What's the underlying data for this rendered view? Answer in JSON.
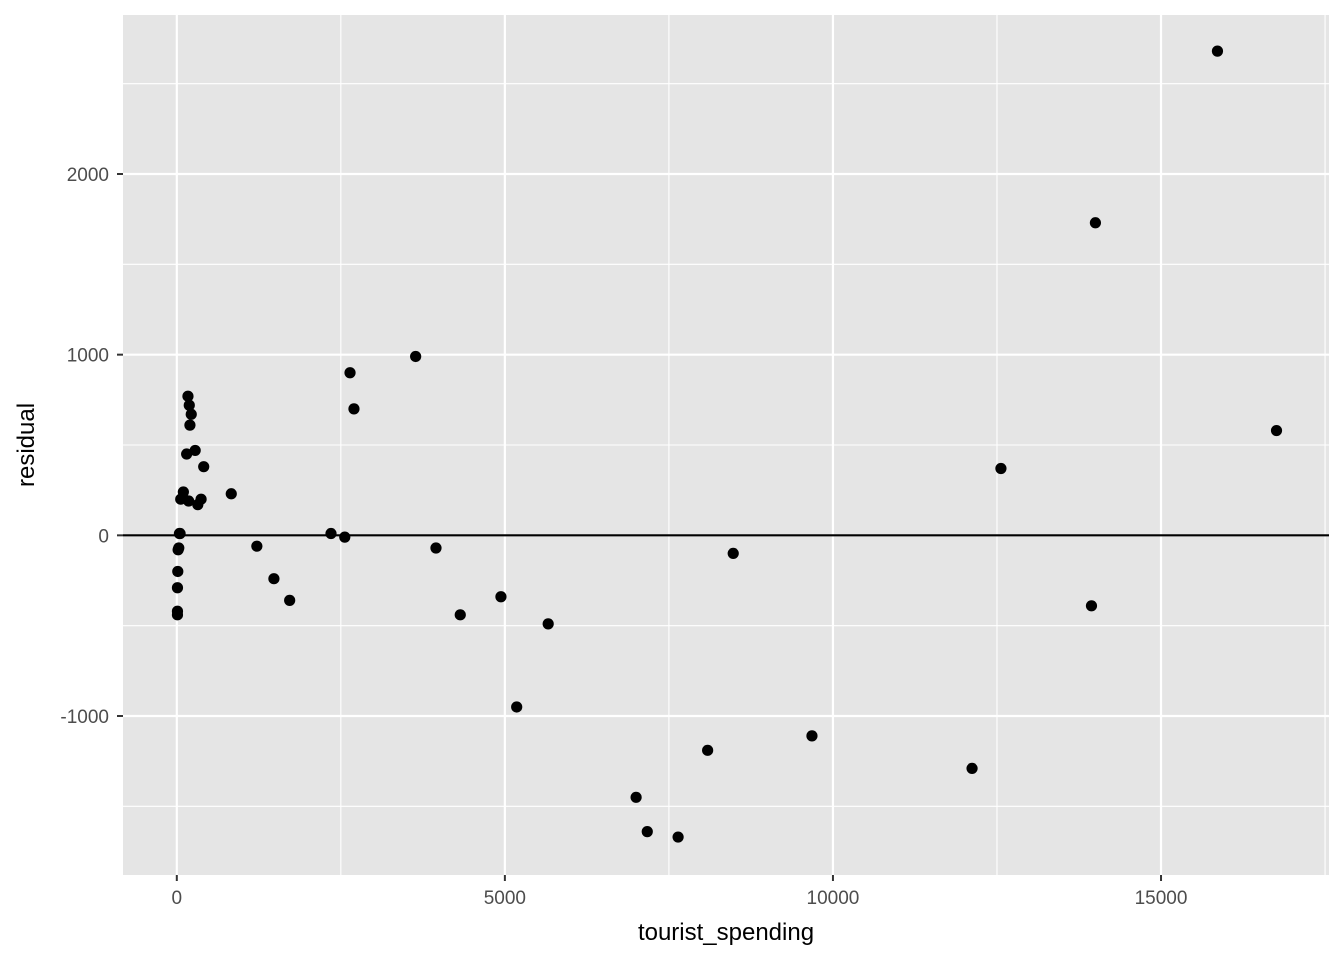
{
  "chart_data": {
    "type": "scatter",
    "title": "",
    "xlabel": "tourist_spending",
    "ylabel": "residual",
    "xlim": [
      -820,
      17560
    ],
    "ylim": [
      -1880,
      2880
    ],
    "x_ticks": [
      0,
      5000,
      10000,
      15000
    ],
    "x_tick_labels": [
      "0",
      "5000",
      "10000",
      "15000"
    ],
    "y_ticks": [
      -1000,
      0,
      1000,
      2000
    ],
    "y_tick_labels": [
      "-1000",
      "0",
      "1000",
      "2000"
    ],
    "hline": 0,
    "grid": true,
    "colors": {
      "panel": "#e5e5e5",
      "grid": "#ffffff",
      "point": "#000000",
      "hline": "#000000",
      "tick": "#333333"
    },
    "points": [
      {
        "x": 10,
        "y": -440
      },
      {
        "x": 10,
        "y": -420
      },
      {
        "x": 10,
        "y": -290
      },
      {
        "x": 15,
        "y": -200
      },
      {
        "x": 20,
        "y": -80
      },
      {
        "x": 30,
        "y": -70
      },
      {
        "x": 40,
        "y": 10
      },
      {
        "x": 50,
        "y": 10
      },
      {
        "x": 60,
        "y": 200
      },
      {
        "x": 100,
        "y": 240
      },
      {
        "x": 150,
        "y": 450
      },
      {
        "x": 170,
        "y": 770
      },
      {
        "x": 190,
        "y": 720
      },
      {
        "x": 200,
        "y": 610
      },
      {
        "x": 220,
        "y": 670
      },
      {
        "x": 180,
        "y": 190
      },
      {
        "x": 280,
        "y": 470
      },
      {
        "x": 320,
        "y": 170
      },
      {
        "x": 370,
        "y": 200
      },
      {
        "x": 410,
        "y": 380
      },
      {
        "x": 830,
        "y": 230
      },
      {
        "x": 1220,
        "y": -60
      },
      {
        "x": 1480,
        "y": -240
      },
      {
        "x": 1720,
        "y": -360
      },
      {
        "x": 2350,
        "y": 10
      },
      {
        "x": 2560,
        "y": -10
      },
      {
        "x": 2640,
        "y": 900
      },
      {
        "x": 2700,
        "y": 700
      },
      {
        "x": 3640,
        "y": 990
      },
      {
        "x": 3950,
        "y": -70
      },
      {
        "x": 4320,
        "y": -440
      },
      {
        "x": 4940,
        "y": -340
      },
      {
        "x": 5180,
        "y": -950
      },
      {
        "x": 5660,
        "y": -490
      },
      {
        "x": 7000,
        "y": -1450
      },
      {
        "x": 7170,
        "y": -1640
      },
      {
        "x": 7640,
        "y": -1670
      },
      {
        "x": 8090,
        "y": -1190
      },
      {
        "x": 8480,
        "y": -100
      },
      {
        "x": 9680,
        "y": -1110
      },
      {
        "x": 12120,
        "y": -1290
      },
      {
        "x": 12560,
        "y": 370
      },
      {
        "x": 13940,
        "y": -390
      },
      {
        "x": 14000,
        "y": 1730
      },
      {
        "x": 15860,
        "y": 2680
      },
      {
        "x": 16760,
        "y": 580
      }
    ]
  }
}
